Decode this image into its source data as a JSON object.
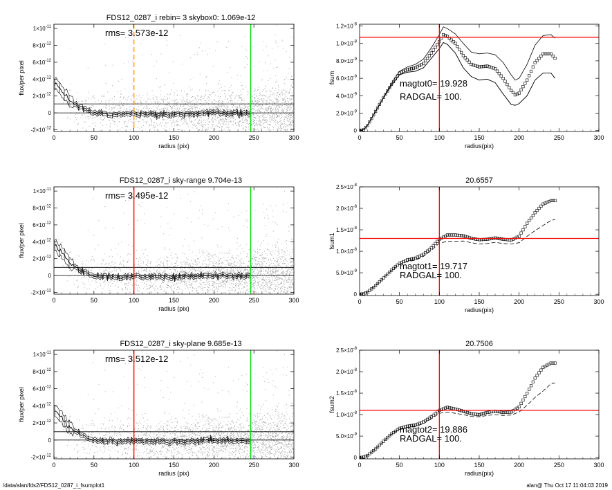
{
  "footer": {
    "left": "/data/alan/fds2/FDS12_0287_i_fsumplot1",
    "right": "alan@  Thu Oct 17 11:04:03 2019"
  },
  "colors": {
    "scatter": "#aaaaaa",
    "profile": "#000000",
    "red": "#ff0000",
    "green": "#00dd00",
    "orange": "#ff9900"
  },
  "chart_data": [
    {
      "id": "profile1",
      "type": "scatter",
      "title": "FDS12_0287_i rebin= 3    skybox0:  1.069e-12",
      "annotation": "rms= 3.573e-12",
      "xlabel": "radius (pix)",
      "ylabel": "flux/per pixel",
      "xlim": [
        0,
        300
      ],
      "ylim": [
        -2.2e-12,
        1.05e-11
      ],
      "xticks": [
        "0",
        "50",
        "100",
        "150",
        "200",
        "250",
        "300"
      ],
      "yticks": [
        {
          "v": 1e-11,
          "m": "1×10",
          "e": "-11"
        },
        {
          "v": 8e-12,
          "m": "8×10",
          "e": "-12"
        },
        {
          "v": 6e-12,
          "m": "6×10",
          "e": "-12"
        },
        {
          "v": 4e-12,
          "m": "4×10",
          "e": "-12"
        },
        {
          "v": 2e-12,
          "m": "2×10",
          "e": "-12"
        },
        {
          "v": 0,
          "m": "0",
          "e": ""
        },
        {
          "v": -2e-12,
          "m": "-2×10",
          "e": "-12"
        }
      ],
      "hlines": [
        0,
        1.069e-12
      ],
      "vlines": [
        {
          "x": 100,
          "color": "orange",
          "dashed": true
        },
        {
          "x": 246,
          "color": "green"
        }
      ],
      "profile": {
        "x": [
          0,
          5,
          10,
          15,
          20,
          30,
          40,
          50,
          60,
          80,
          100,
          150,
          200,
          246
        ],
        "y": [
          3.6e-12,
          3.2e-12,
          2.7e-12,
          2e-12,
          1.5e-12,
          8e-13,
          4e-13,
          0,
          -1e-13,
          -2e-13,
          -1e-13,
          -2e-13,
          0,
          -1e-13
        ]
      }
    },
    {
      "id": "growth1",
      "type": "line",
      "title": "",
      "xlabel": "radius(pix)",
      "ylabel": "fsum",
      "annotations": [
        "magtot0=  19.928",
        "RADGAL=    100."
      ],
      "xlim": [
        0,
        300
      ],
      "ylim": [
        -1e-10,
        1.22e-08
      ],
      "xticks": [
        "0",
        "50",
        "100",
        "150",
        "200",
        "250",
        "300"
      ],
      "yticks": [
        {
          "v": 1.2e-08,
          "m": "1.2×10",
          "e": "-8"
        },
        {
          "v": 1e-08,
          "m": "1.0×10",
          "e": "-8"
        },
        {
          "v": 8e-09,
          "m": "8.0×10",
          "e": "-9"
        },
        {
          "v": 6e-09,
          "m": "6.0×10",
          "e": "-9"
        },
        {
          "v": 4e-09,
          "m": "4.0×10",
          "e": "-9"
        },
        {
          "v": 2e-09,
          "m": "2.0×10",
          "e": "-9"
        },
        {
          "v": 0,
          "m": "0",
          "e": ""
        }
      ],
      "hline_red": 1.07e-08,
      "vline_red": 100,
      "x": [
        0,
        5,
        10,
        20,
        30,
        40,
        50,
        60,
        70,
        80,
        90,
        100,
        105,
        110,
        120,
        130,
        140,
        150,
        160,
        170,
        180,
        190,
        195,
        200,
        210,
        220,
        230,
        240,
        245
      ],
      "y": [
        0,
        1e-10,
        6e-10,
        2.2e-09,
        3.8e-09,
        5.3e-09,
        6.6e-09,
        7e-09,
        7.2e-09,
        7.7e-09,
        8.9e-09,
        1.02e-08,
        1.1e-08,
        1.08e-08,
        1e-08,
        8.6e-09,
        7.6e-09,
        7.3e-09,
        7.4e-09,
        7.1e-09,
        6e-09,
        4.6e-09,
        4.1e-09,
        4.3e-09,
        5.8e-09,
        7.8e-09,
        8.8e-09,
        8.8e-09,
        8.3e-09
      ],
      "upper": [
        0,
        1e-10,
        6e-10,
        2.2e-09,
        3.8e-09,
        5.4e-09,
        6.8e-09,
        7.3e-09,
        7.6e-09,
        8.2e-09,
        9.5e-09,
        1.1e-08,
        1.19e-08,
        1.17e-08,
        1.11e-08,
        1e-08,
        9e-09,
        8.8e-09,
        8.9e-09,
        8.7e-09,
        7.8e-09,
        6.4e-09,
        5.8e-09,
        6e-09,
        7.6e-09,
        9.8e-09,
        1.09e-08,
        1.1e-08,
        1.06e-08
      ],
      "lower": [
        0,
        1e-10,
        6e-10,
        2.2e-09,
        3.8e-09,
        5.2e-09,
        6.4e-09,
        6.7e-09,
        6.8e-09,
        7.2e-09,
        8.3e-09,
        9.4e-09,
        1.01e-08,
        9.9e-09,
        8.9e-09,
        7.2e-09,
        6.2e-09,
        5.8e-09,
        5.9e-09,
        5.5e-09,
        4.2e-09,
        3e-09,
        2.9e-09,
        3.1e-09,
        4e-09,
        5.8e-09,
        6.6e-09,
        6.6e-09,
        6e-09
      ]
    },
    {
      "id": "profile2",
      "type": "scatter",
      "title": "FDS12_0287_i sky-range  9.704e-13",
      "annotation": "rms= 3.495e-12",
      "xlabel": "radius (pix)",
      "ylabel": "flux/per pixel",
      "xlim": [
        0,
        300
      ],
      "ylim": [
        -2.2e-12,
        1.05e-11
      ],
      "xticks": [
        "0",
        "50",
        "100",
        "150",
        "200",
        "250",
        "300"
      ],
      "yticks": [
        {
          "v": 1e-11,
          "m": "1×10",
          "e": "-11"
        },
        {
          "v": 8e-12,
          "m": "8×10",
          "e": "-12"
        },
        {
          "v": 6e-12,
          "m": "6×10",
          "e": "-12"
        },
        {
          "v": 4e-12,
          "m": "4×10",
          "e": "-12"
        },
        {
          "v": 2e-12,
          "m": "2×10",
          "e": "-12"
        },
        {
          "v": 0,
          "m": "0",
          "e": ""
        },
        {
          "v": -2e-12,
          "m": "-2×10",
          "e": "-12"
        }
      ],
      "hlines": [
        0,
        9.704e-13
      ],
      "vlines": [
        {
          "x": 100,
          "color": "red"
        },
        {
          "x": 246,
          "color": "green"
        }
      ],
      "profile": {
        "x": [
          0,
          5,
          10,
          15,
          20,
          30,
          40,
          50,
          60,
          80,
          100,
          150,
          200,
          246
        ],
        "y": [
          3.6e-12,
          3.2e-12,
          2.7e-12,
          2e-12,
          1.5e-12,
          8e-13,
          4e-13,
          0,
          -1e-13,
          -2e-13,
          -1e-13,
          -2e-13,
          0,
          -1e-13
        ]
      }
    },
    {
      "id": "growth2",
      "type": "line",
      "title": "20.6557",
      "xlabel": "radius(pix)",
      "ylabel": "fsum1",
      "annotations": [
        "magtot1=  19.717",
        "RADGAL=    100."
      ],
      "xlim": [
        0,
        300
      ],
      "ylim": [
        -3e-10,
        2.5e-08
      ],
      "xticks": [
        "0",
        "50",
        "100",
        "150",
        "200",
        "250",
        "300"
      ],
      "yticks": [
        {
          "v": 2.5e-08,
          "m": "2.5×10",
          "e": "-8"
        },
        {
          "v": 2e-08,
          "m": "2.0×10",
          "e": "-8"
        },
        {
          "v": 1.5e-08,
          "m": "1.5×10",
          "e": "-8"
        },
        {
          "v": 1e-08,
          "m": "1.0×10",
          "e": "-8"
        },
        {
          "v": 5e-09,
          "m": "5.0×10",
          "e": "-9"
        },
        {
          "v": 0,
          "m": "0",
          "e": ""
        }
      ],
      "hline_red": 1.3e-08,
      "vline_red": 100,
      "x": [
        0,
        5,
        10,
        20,
        30,
        40,
        50,
        60,
        70,
        80,
        90,
        100,
        110,
        120,
        130,
        140,
        150,
        160,
        170,
        180,
        190,
        200,
        210,
        220,
        230,
        240,
        245
      ],
      "y": [
        0,
        1e-10,
        5e-10,
        2e-09,
        3.8e-09,
        5.6e-09,
        7.2e-09,
        8e-09,
        8.4e-09,
        9.3e-09,
        1.08e-08,
        1.28e-08,
        1.38e-08,
        1.38e-08,
        1.36e-08,
        1.3e-08,
        1.27e-08,
        1.28e-08,
        1.31e-08,
        1.28e-08,
        1.26e-08,
        1.35e-08,
        1.65e-08,
        1.9e-08,
        2.1e-08,
        2.18e-08,
        2.18e-08
      ],
      "lower": [
        0,
        1e-10,
        5e-10,
        2e-09,
        3.8e-09,
        5.5e-09,
        7e-09,
        7.6e-09,
        7.9e-09,
        8.8e-09,
        1.02e-08,
        1.19e-08,
        1.23e-08,
        1.23e-08,
        1.24e-08,
        1.2e-08,
        1.17e-08,
        1.18e-08,
        1.21e-08,
        1.18e-08,
        1.17e-08,
        1.2e-08,
        1.35e-08,
        1.48e-08,
        1.6e-08,
        1.72e-08,
        1.74e-08
      ]
    },
    {
      "id": "profile3",
      "type": "scatter",
      "title": "FDS12_0287_i sky-plane  9.685e-13",
      "annotation": "rms= 3.512e-12",
      "xlabel": "radius (pix)",
      "ylabel": "flux/per pixel",
      "xlim": [
        0,
        300
      ],
      "ylim": [
        -2.2e-12,
        1.05e-11
      ],
      "xticks": [
        "0",
        "50",
        "100",
        "150",
        "200",
        "250",
        "300"
      ],
      "yticks": [
        {
          "v": 1e-11,
          "m": "1×10",
          "e": "-11"
        },
        {
          "v": 8e-12,
          "m": "8×10",
          "e": "-12"
        },
        {
          "v": 6e-12,
          "m": "6×10",
          "e": "-12"
        },
        {
          "v": 4e-12,
          "m": "4×10",
          "e": "-12"
        },
        {
          "v": 2e-12,
          "m": "2×10",
          "e": "-12"
        },
        {
          "v": 0,
          "m": "0",
          "e": ""
        },
        {
          "v": -2e-12,
          "m": "-2×10",
          "e": "-12"
        }
      ],
      "hlines": [
        0,
        9.685e-13
      ],
      "vlines": [
        {
          "x": 100,
          "color": "red"
        },
        {
          "x": 246,
          "color": "green"
        }
      ],
      "profile": {
        "x": [
          0,
          5,
          10,
          15,
          20,
          30,
          40,
          50,
          60,
          80,
          100,
          150,
          200,
          246
        ],
        "y": [
          3.6e-12,
          3.2e-12,
          2.7e-12,
          2e-12,
          1.5e-12,
          8e-13,
          4e-13,
          0,
          -1e-13,
          -2e-13,
          -1e-13,
          -2e-13,
          0,
          -1e-13
        ]
      }
    },
    {
      "id": "growth3",
      "type": "line",
      "title": "20.7506",
      "xlabel": "radius(pix)",
      "ylabel": "fsum2",
      "annotations": [
        "magtot2=  19.886",
        "RADGAL=    100."
      ],
      "xlim": [
        0,
        300
      ],
      "ylim": [
        -3e-10,
        2.5e-08
      ],
      "xticks": [
        "0",
        "50",
        "100",
        "150",
        "200",
        "250",
        "300"
      ],
      "yticks": [
        {
          "v": 2.5e-08,
          "m": "2.5×10",
          "e": "-8"
        },
        {
          "v": 2e-08,
          "m": "2.0×10",
          "e": "-8"
        },
        {
          "v": 1.5e-08,
          "m": "1.5×10",
          "e": "-8"
        },
        {
          "v": 1e-08,
          "m": "1.0×10",
          "e": "-8"
        },
        {
          "v": 5e-09,
          "m": "5.0×10",
          "e": "-9"
        },
        {
          "v": 0,
          "m": "0",
          "e": ""
        }
      ],
      "hline_red": 1.1e-08,
      "vline_red": 100,
      "x": [
        0,
        5,
        10,
        20,
        30,
        40,
        50,
        60,
        70,
        80,
        90,
        100,
        110,
        120,
        130,
        140,
        150,
        160,
        170,
        180,
        190,
        200,
        210,
        220,
        230,
        240,
        245
      ],
      "y": [
        0,
        1e-10,
        5e-10,
        2e-09,
        3.8e-09,
        5.5e-09,
        6.8e-09,
        7.3e-09,
        7.6e-09,
        8.3e-09,
        9.5e-09,
        1.1e-08,
        1.17e-08,
        1.13e-08,
        1.08e-08,
        1.02e-08,
        1e-08,
        1.05e-08,
        1.08e-08,
        1.05e-08,
        1.06e-08,
        1.18e-08,
        1.5e-08,
        1.85e-08,
        2.1e-08,
        2.2e-08,
        2.2e-08
      ],
      "lower": [
        0,
        1e-10,
        5e-10,
        2e-09,
        3.8e-09,
        5.4e-09,
        6.6e-09,
        7e-09,
        7.2e-09,
        7.9e-09,
        9e-09,
        1.03e-08,
        1.06e-08,
        1.03e-08,
        1e-08,
        9.6e-09,
        9.5e-09,
        9.8e-09,
        1e-08,
        9.8e-09,
        9.9e-09,
        1.06e-08,
        1.22e-08,
        1.4e-08,
        1.55e-08,
        1.72e-08,
        1.74e-08
      ]
    }
  ]
}
